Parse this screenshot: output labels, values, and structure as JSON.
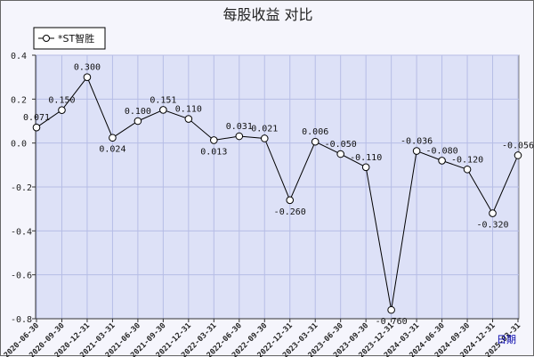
{
  "chart_data": {
    "type": "line",
    "title": "每股收益  对比",
    "xlabel": "日期",
    "ylabel": "",
    "ylim": [
      -0.8,
      0.4
    ],
    "yticks": [
      "0.4",
      "0.2",
      "0.0",
      "-0.2",
      "-0.4",
      "-0.6",
      "-0.8"
    ],
    "ytick_values": [
      0.4,
      0.2,
      0.0,
      -0.2,
      -0.4,
      -0.6,
      -0.8
    ],
    "grid": true,
    "legend_position": "top-left",
    "categories": [
      "2020-06-30",
      "2020-09-30",
      "2020-12-31",
      "2021-03-31",
      "2021-06-30",
      "2021-09-30",
      "2021-12-31",
      "2022-03-31",
      "2022-06-30",
      "2022-09-30",
      "2022-12-31",
      "2023-03-31",
      "2023-06-30",
      "2023-09-30",
      "2023-12-31",
      "2024-03-31",
      "2024-06-30",
      "2024-09-30",
      "2024-12-31",
      "2025-03-31"
    ],
    "series": [
      {
        "name": "*ST智胜",
        "values": [
          0.071,
          0.15,
          0.3,
          0.024,
          0.1,
          0.151,
          0.11,
          0.013,
          0.031,
          0.021,
          -0.26,
          0.006,
          -0.05,
          -0.11,
          -0.76,
          -0.036,
          -0.08,
          -0.12,
          -0.32,
          -0.056
        ],
        "labels": [
          "0.071",
          "0.150",
          "0.300",
          "0.024",
          "0.100",
          "0.151",
          "0.110",
          "0.013",
          "0.031",
          "0.021",
          "-0.260",
          "0.006",
          "-0.050",
          "-0.110",
          "-0.760",
          "-0.036",
          "-0.080",
          "-0.120",
          "-0.320",
          "-0.056"
        ]
      }
    ],
    "colors": {
      "plot_bg": "#dde1f7",
      "grid": "#b6bde6",
      "line": "#000000",
      "marker_fill": "#ffffff"
    }
  }
}
